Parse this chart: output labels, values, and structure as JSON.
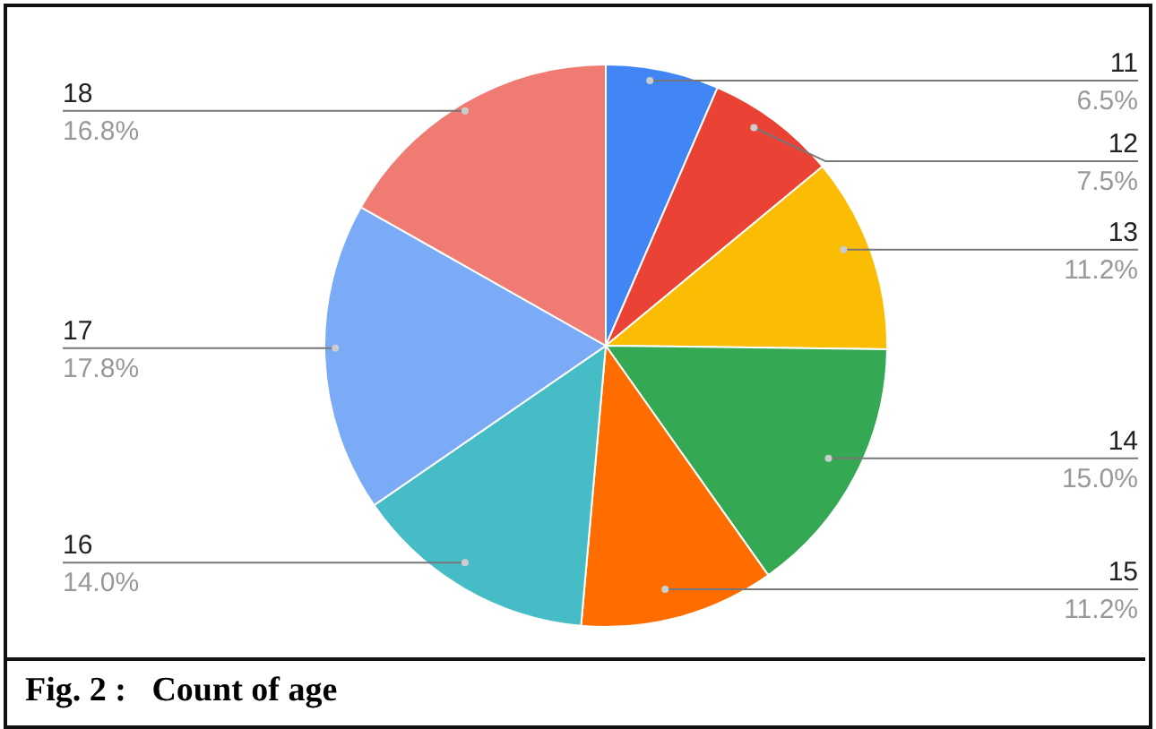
{
  "chart_data": {
    "type": "pie",
    "title": "Fig. 2 :   Count of age",
    "categories": [
      "11",
      "12",
      "13",
      "14",
      "15",
      "16",
      "17",
      "18"
    ],
    "values": [
      6.5,
      7.5,
      11.2,
      15.0,
      11.2,
      14.0,
      17.8,
      16.8
    ],
    "value_labels": [
      "6.5%",
      "7.5%",
      "11.2%",
      "15.0%",
      "11.2%",
      "14.0%",
      "17.8%",
      "16.8%"
    ],
    "colors": [
      "#4285f4",
      "#ea4335",
      "#fbbc04",
      "#34a853",
      "#ff6d01",
      "#46bdc6",
      "#7baaf7",
      "#f07b72"
    ]
  }
}
